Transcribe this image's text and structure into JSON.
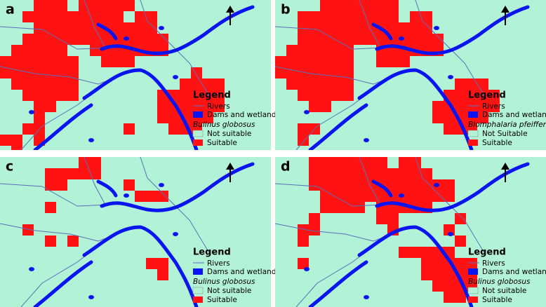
{
  "panels": [
    {
      "letter": "a",
      "legend": {
        "title": "Legend",
        "rivers": "Rivers",
        "dams": "Dams and wetlands",
        "species": "Bulinus globosus",
        "not_suitable": "Not suitable",
        "suitable": "Suitable"
      }
    },
    {
      "letter": "b",
      "legend": {
        "title": "Legend",
        "rivers": "Rivers",
        "dams": "Dams and wetlands",
        "species": "Biomphalaria pfeifferi",
        "not_suitable": "Not Suitable",
        "suitable": "Suitable"
      }
    },
    {
      "letter": "c",
      "legend": {
        "title": "Legend",
        "rivers": "Rivers",
        "dams": "Dams and wetlands",
        "species": "Bulinus globosus",
        "not_suitable": "Not suitable",
        "suitable": "Suitable"
      }
    },
    {
      "letter": "d",
      "legend": {
        "title": "Legend",
        "rivers": "Rivers",
        "dams": "Dams and wetlands",
        "species": "Bulinus globosus",
        "not_suitable": "Not suitable",
        "suitable": "Suitable"
      }
    }
  ]
}
